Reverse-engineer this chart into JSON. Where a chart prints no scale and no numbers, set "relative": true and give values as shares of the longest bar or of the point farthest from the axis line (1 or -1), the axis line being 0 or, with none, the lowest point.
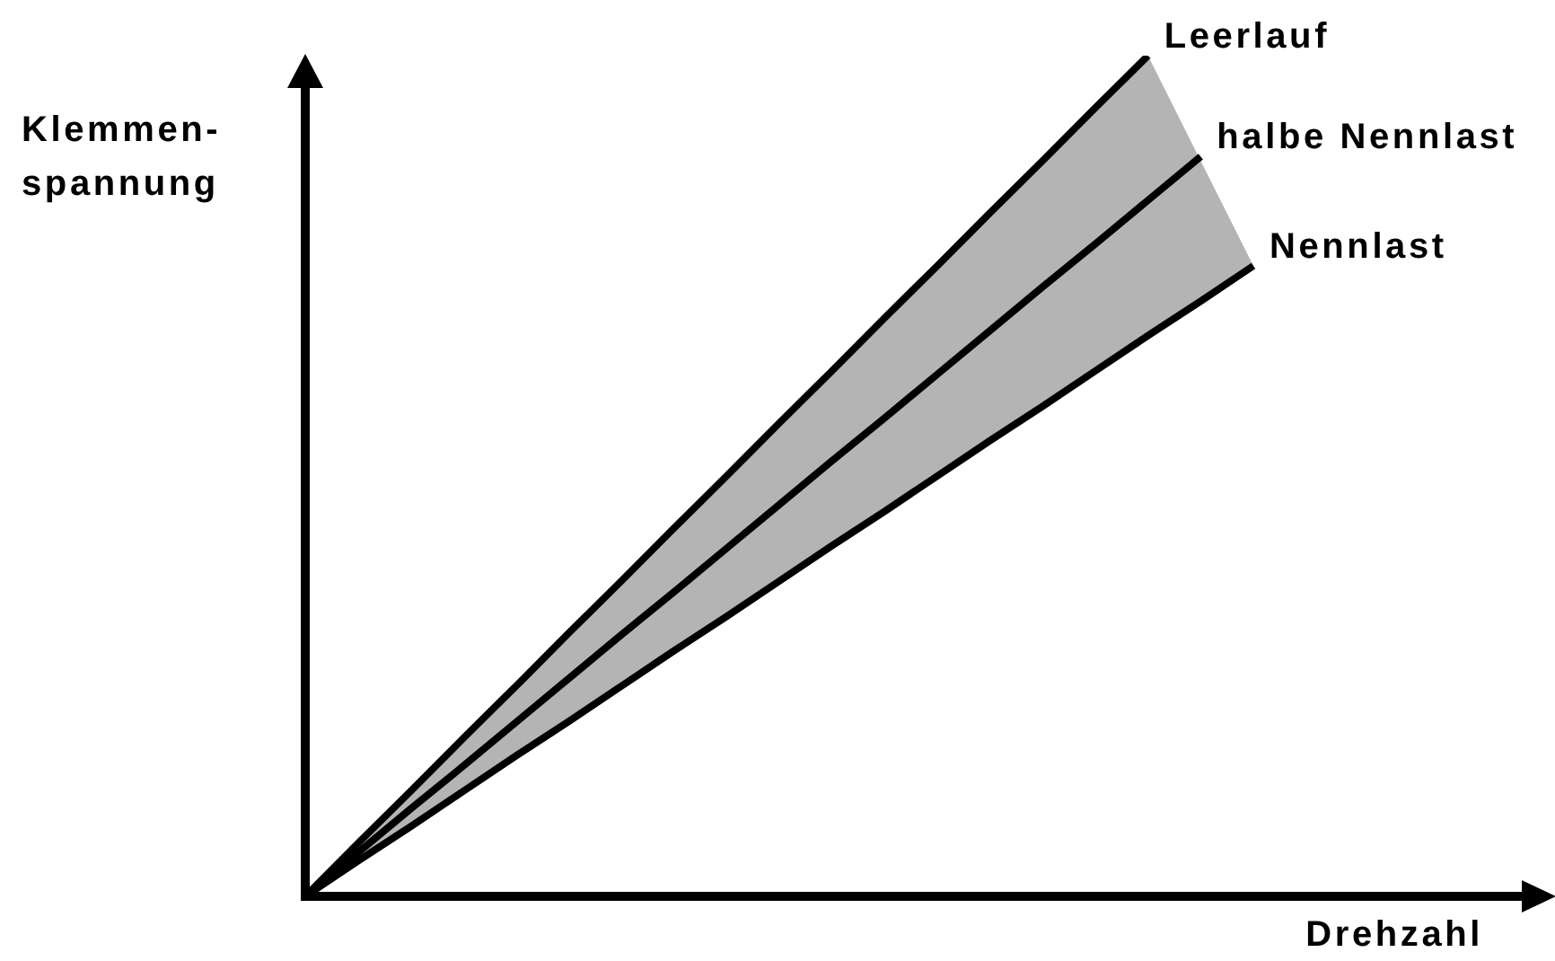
{
  "chart_data": {
    "type": "line",
    "xlabel": "Drehzahl",
    "ylabel": "Klemmen-\nspannung",
    "relative": true,
    "marker": "none",
    "categories": [
      null,
      null,
      null,
      null,
      null,
      null,
      null,
      null,
      null,
      null,
      null,
      null,
      null,
      null,
      null,
      null,
      null,
      null,
      null
    ],
    "series": [
      {
        "name": "Leerlauf",
        "color": "#000000",
        "values": [
          0,
          0.063,
          0.125,
          0.188,
          0.25,
          0.313,
          0.375,
          0.438,
          0.5,
          0.563,
          0.625,
          0.688,
          0.75,
          0.813,
          0.875,
          0.938,
          1,
          null,
          null
        ]
      },
      {
        "name": "halbe Nennlast",
        "color": "#000000",
        "values": [
          0,
          0.052,
          0.104,
          0.155,
          0.207,
          0.259,
          0.311,
          0.362,
          0.414,
          0.466,
          0.518,
          0.569,
          0.621,
          0.673,
          0.725,
          0.776,
          0.828,
          0.88,
          null
        ],
        "upper": [
          0,
          0.063,
          0.125,
          0.188,
          0.25,
          0.313,
          0.375,
          0.438,
          0.5,
          0.563,
          0.625,
          0.688,
          0.75,
          0.813,
          0.875,
          0.938,
          1,
          0.875,
          0.75
        ],
        "lower": [
          0,
          0.042,
          0.083,
          0.125,
          0.167,
          0.208,
          0.25,
          0.292,
          0.333,
          0.375,
          0.417,
          0.458,
          0.5,
          0.542,
          0.583,
          0.625,
          0.667,
          0.708,
          0.75
        ]
      },
      {
        "name": "Nennlast",
        "color": "#000000",
        "values": [
          0,
          0.042,
          0.083,
          0.125,
          0.167,
          0.208,
          0.25,
          0.292,
          0.333,
          0.375,
          0.417,
          0.458,
          0.5,
          0.542,
          0.583,
          0.625,
          0.667,
          0.708,
          0.75
        ]
      }
    ]
  }
}
